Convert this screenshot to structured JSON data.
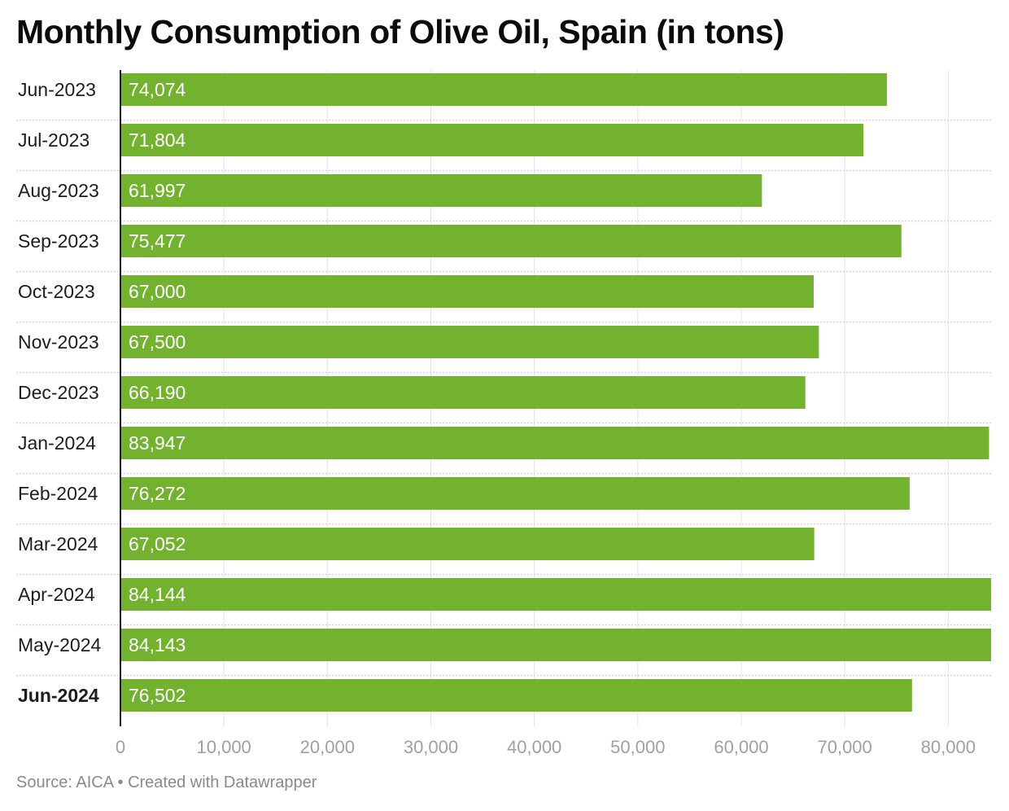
{
  "chart_data": {
    "type": "bar",
    "orientation": "horizontal",
    "title": "Monthly Consumption of Olive Oil, Spain (in tons)",
    "categories": [
      "Jun-2023",
      "Jul-2023",
      "Aug-2023",
      "Sep-2023",
      "Oct-2023",
      "Nov-2023",
      "Dec-2023",
      "Jan-2024",
      "Feb-2024",
      "Mar-2024",
      "Apr-2024",
      "May-2024",
      "Jun-2024"
    ],
    "values": [
      74074,
      71804,
      61997,
      75477,
      67000,
      67500,
      66190,
      83947,
      76272,
      67052,
      84144,
      84143,
      76502
    ],
    "value_labels": [
      "74,074",
      "71,804",
      "61,997",
      "75,477",
      "67,000",
      "67,500",
      "66,190",
      "83,947",
      "76,272",
      "67,052",
      "84,144",
      "84,143",
      "76,502"
    ],
    "highlighted_category": "Jun-2024",
    "xlim": [
      0,
      84144
    ],
    "x_ticks": [
      0,
      10000,
      20000,
      30000,
      40000,
      50000,
      60000,
      70000,
      80000
    ],
    "x_tick_labels": [
      "0",
      "10,000",
      "20,000",
      "30,000",
      "40,000",
      "50,000",
      "60,000",
      "70,000",
      "80,000"
    ],
    "xlabel": "",
    "ylabel": "",
    "grid": true,
    "legend": "none",
    "bar_color": "#73b22f",
    "grid_color": "#e3e3e3",
    "separator_color": "#d6d6d6",
    "axis_color": "#1d1d1d",
    "tick_label_color": "#a0a0a0",
    "value_label_color": "#ffffff"
  },
  "footer": {
    "source": "Source: AICA • Created with Datawrapper"
  }
}
